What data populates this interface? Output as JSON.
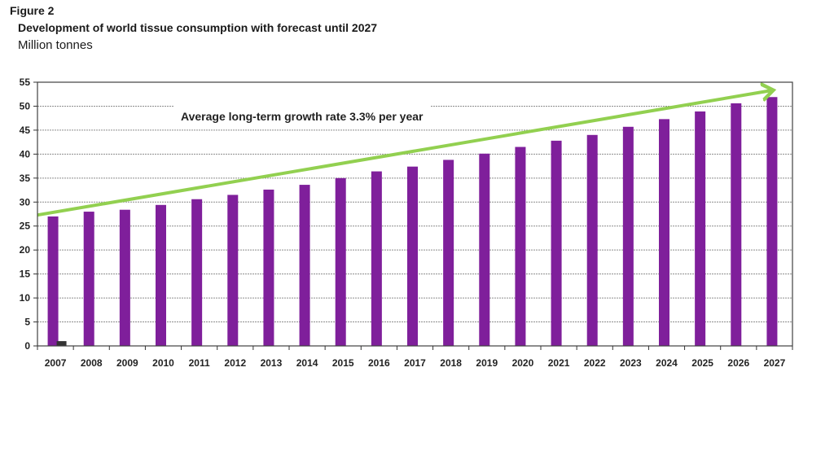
{
  "figure_label": "Figure 2",
  "chart_data": {
    "type": "bar",
    "title": "Development of world tissue consumption with forecast until 2027",
    "subtitle": "Million tonnes",
    "xlabel": "",
    "ylabel": "",
    "categories": [
      "2007",
      "2008",
      "2009",
      "2010",
      "2011",
      "2012",
      "2013",
      "2014",
      "2015",
      "2016",
      "2017",
      "2018",
      "2019",
      "2020",
      "2021",
      "2022",
      "2023",
      "2024",
      "2025",
      "2026",
      "2027"
    ],
    "series": [
      {
        "values": [
          27.0,
          28.0,
          28.4,
          29.4,
          30.6,
          31.5,
          32.6,
          33.6,
          35.0,
          36.4,
          37.4,
          38.8,
          40.1,
          41.5,
          42.8,
          44.0,
          45.7,
          47.3,
          48.9,
          50.6,
          51.9
        ],
        "color": "#7f1f9b"
      },
      {
        "values": [
          1.0,
          null,
          null,
          null,
          null,
          null,
          null,
          null,
          null,
          null,
          null,
          null,
          null,
          null,
          null,
          null,
          null,
          null,
          null,
          null,
          null
        ],
        "color": "#333333"
      }
    ],
    "ylim": [
      0,
      55
    ],
    "yticks": [
      0,
      5,
      10,
      15,
      20,
      25,
      30,
      35,
      40,
      45,
      50,
      55
    ],
    "grid": true,
    "trend_arrow": {
      "label": "Average long-term growth rate 3.3% per year",
      "start": {
        "category": "2007",
        "value": 27.3
      },
      "end": {
        "category": "2027",
        "value": 53.3
      },
      "color": "#92d050"
    }
  }
}
